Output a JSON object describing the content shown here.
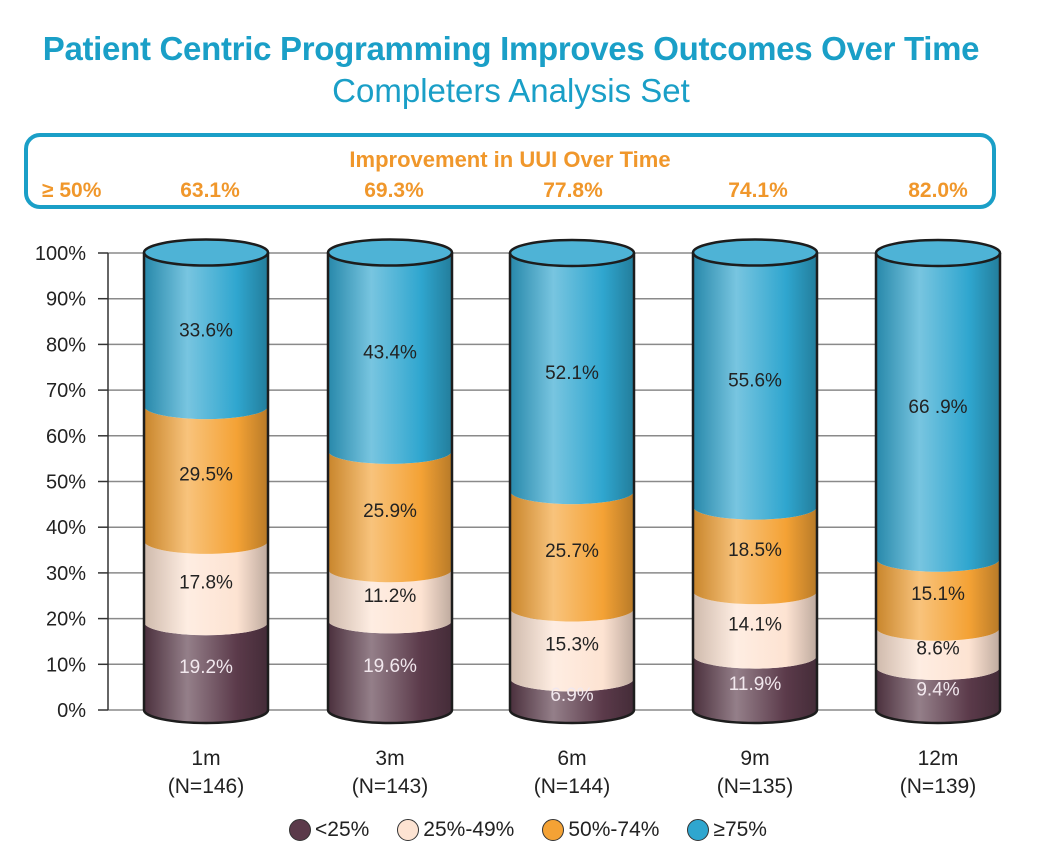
{
  "header": {
    "title": "Patient Centric Programming Improves Outcomes Over Time",
    "subtitle": "Completers Analysis Set"
  },
  "improvement": {
    "title": "Improvement in UUI Over Time",
    "label": "≥ 50%",
    "values": [
      "63.1%",
      "69.3%",
      "77.8%",
      "74.1%",
      "82.0%"
    ]
  },
  "legend": {
    "items": [
      {
        "label": "<25%",
        "color": "#5b3a4a"
      },
      {
        "label": "25%-49%",
        "color": "#fde3d2"
      },
      {
        "label": "50%-74%",
        "color": "#f4a235"
      },
      {
        "label": "≥75%",
        "color": "#2fa6cf"
      }
    ]
  },
  "chart_data": {
    "type": "bar",
    "stacked": true,
    "categories": [
      "1m",
      "3m",
      "6m",
      "9m",
      "12m"
    ],
    "category_sub": [
      "(N=146)",
      "(N=143)",
      "(N=144)",
      "(N=135)",
      "(N=139)"
    ],
    "series": [
      {
        "name": "<25%",
        "color": "#5b3a4a",
        "values": [
          19.2,
          19.6,
          6.9,
          11.9,
          9.4
        ],
        "labels": [
          "19.2%",
          "19.6%",
          "6.9%",
          "11.9%",
          "9.4%"
        ]
      },
      {
        "name": "25%-49%",
        "color": "#fde3d2",
        "values": [
          17.8,
          11.2,
          15.3,
          14.1,
          8.6
        ],
        "labels": [
          "17.8%",
          "11.2%",
          "15.3%",
          "14.1%",
          "8.6%"
        ]
      },
      {
        "name": "50%-74%",
        "color": "#f4a235",
        "values": [
          29.5,
          25.9,
          25.7,
          18.5,
          15.1
        ],
        "labels": [
          "29.5%",
          "25.9%",
          "25.7%",
          "18.5%",
          "15.1%"
        ]
      },
      {
        "name": "≥75%",
        "color": "#2fa6cf",
        "values": [
          33.6,
          43.4,
          52.1,
          55.6,
          66.9
        ],
        "labels": [
          "33.6%",
          "43.4%",
          "52.1%",
          "55.6%",
          "66 .9%"
        ]
      }
    ],
    "yticks": [
      "0%",
      "10%",
      "20%",
      "30%",
      "40%",
      "50%",
      "60%",
      "70%",
      "80%",
      "90%",
      "100%"
    ],
    "ylim": [
      0,
      100
    ],
    "grid": true,
    "legend_position": "bottom"
  }
}
